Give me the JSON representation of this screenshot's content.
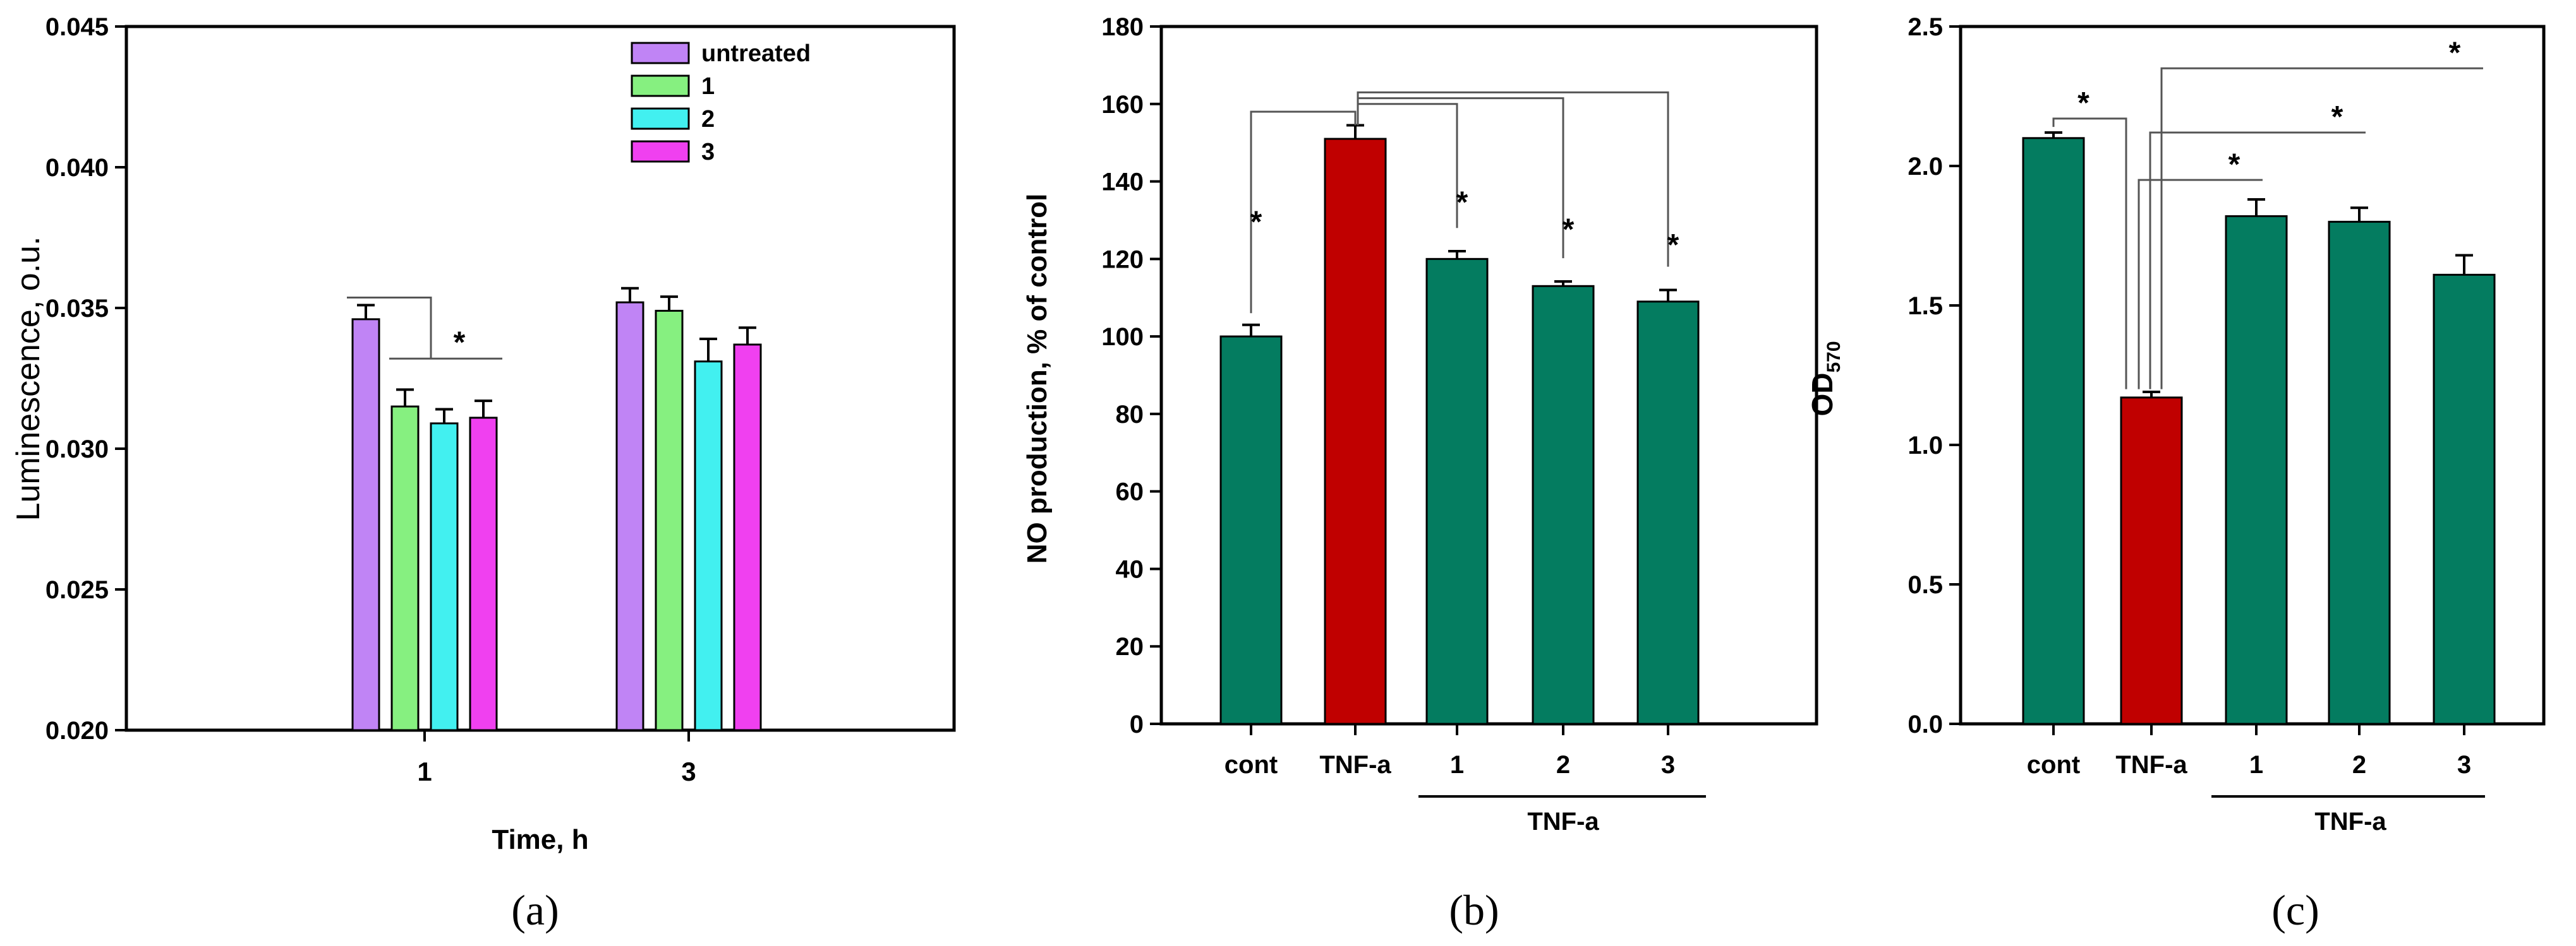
{
  "chart_data": [
    {
      "type": "bar",
      "panel_label": "(a)",
      "xlabel": "Time, h",
      "ylabel": "Luminescence, o.u.",
      "ylim": [
        0.02,
        0.045
      ],
      "yticks": [
        "0.020",
        "0.025",
        "0.030",
        "0.035",
        "0.040",
        "0.045"
      ],
      "ytick_values": [
        0.02,
        0.025,
        0.03,
        0.035,
        0.04,
        0.045
      ],
      "categories": [
        "1",
        "3"
      ],
      "legend_position": "top-right",
      "series": [
        {
          "name": "untreated",
          "color": "#c084f5",
          "values": [
            0.0346,
            0.0352
          ],
          "errors": [
            0.0005,
            0.0005
          ]
        },
        {
          "name": "1",
          "color": "#86f080",
          "values": [
            0.0315,
            0.0349
          ],
          "errors": [
            0.0006,
            0.0005
          ]
        },
        {
          "name": "2",
          "color": "#42f0f0",
          "values": [
            0.0309,
            0.0331
          ],
          "errors": [
            0.0005,
            0.0008
          ]
        },
        {
          "name": "3",
          "color": "#f040f0",
          "values": [
            0.0311,
            0.0337
          ],
          "errors": [
            0.0006,
            0.0006
          ]
        }
      ],
      "annotations": [
        {
          "label": "*"
        }
      ]
    },
    {
      "type": "bar",
      "panel_label": "(b)",
      "xlabel": "",
      "ylabel": "NO production, % of control",
      "ylim": [
        0,
        180
      ],
      "yticks": [
        "0",
        "20",
        "40",
        "60",
        "80",
        "100",
        "120",
        "140",
        "160",
        "180"
      ],
      "ytick_values": [
        0,
        20,
        40,
        60,
        80,
        100,
        120,
        140,
        160,
        180
      ],
      "categories": [
        "cont",
        "TNF-a",
        "1",
        "2",
        "3"
      ],
      "group_label": "TNF-a",
      "values": [
        100,
        151,
        120,
        113,
        109
      ],
      "errors": [
        3,
        3.5,
        2,
        1.2,
        3
      ],
      "colors": [
        "#047c60",
        "#c00000",
        "#047c60",
        "#047c60",
        "#047c60"
      ],
      "annotations": [
        {
          "label": "*"
        },
        {
          "label": "*"
        },
        {
          "label": "*"
        },
        {
          "label": "*"
        }
      ]
    },
    {
      "type": "bar",
      "panel_label": "(c)",
      "xlabel": "",
      "ylabel": "OD",
      "ylabel_sub": "570",
      "ylim": [
        0,
        2.5
      ],
      "yticks": [
        "0.0",
        "0.5",
        "1.0",
        "1.5",
        "2.0",
        "2.5"
      ],
      "ytick_values": [
        0,
        0.5,
        1.0,
        1.5,
        2.0,
        2.5
      ],
      "categories": [
        "cont",
        "TNF-a",
        "1",
        "2",
        "3"
      ],
      "group_label": "TNF-a",
      "values": [
        2.1,
        1.17,
        1.82,
        1.8,
        1.61
      ],
      "errors": [
        0.02,
        0.02,
        0.06,
        0.05,
        0.07
      ],
      "colors": [
        "#047c60",
        "#c00000",
        "#047c60",
        "#047c60",
        "#047c60"
      ],
      "annotations": [
        {
          "label": "*"
        },
        {
          "label": "*"
        },
        {
          "label": "*"
        },
        {
          "label": "*"
        }
      ]
    }
  ]
}
